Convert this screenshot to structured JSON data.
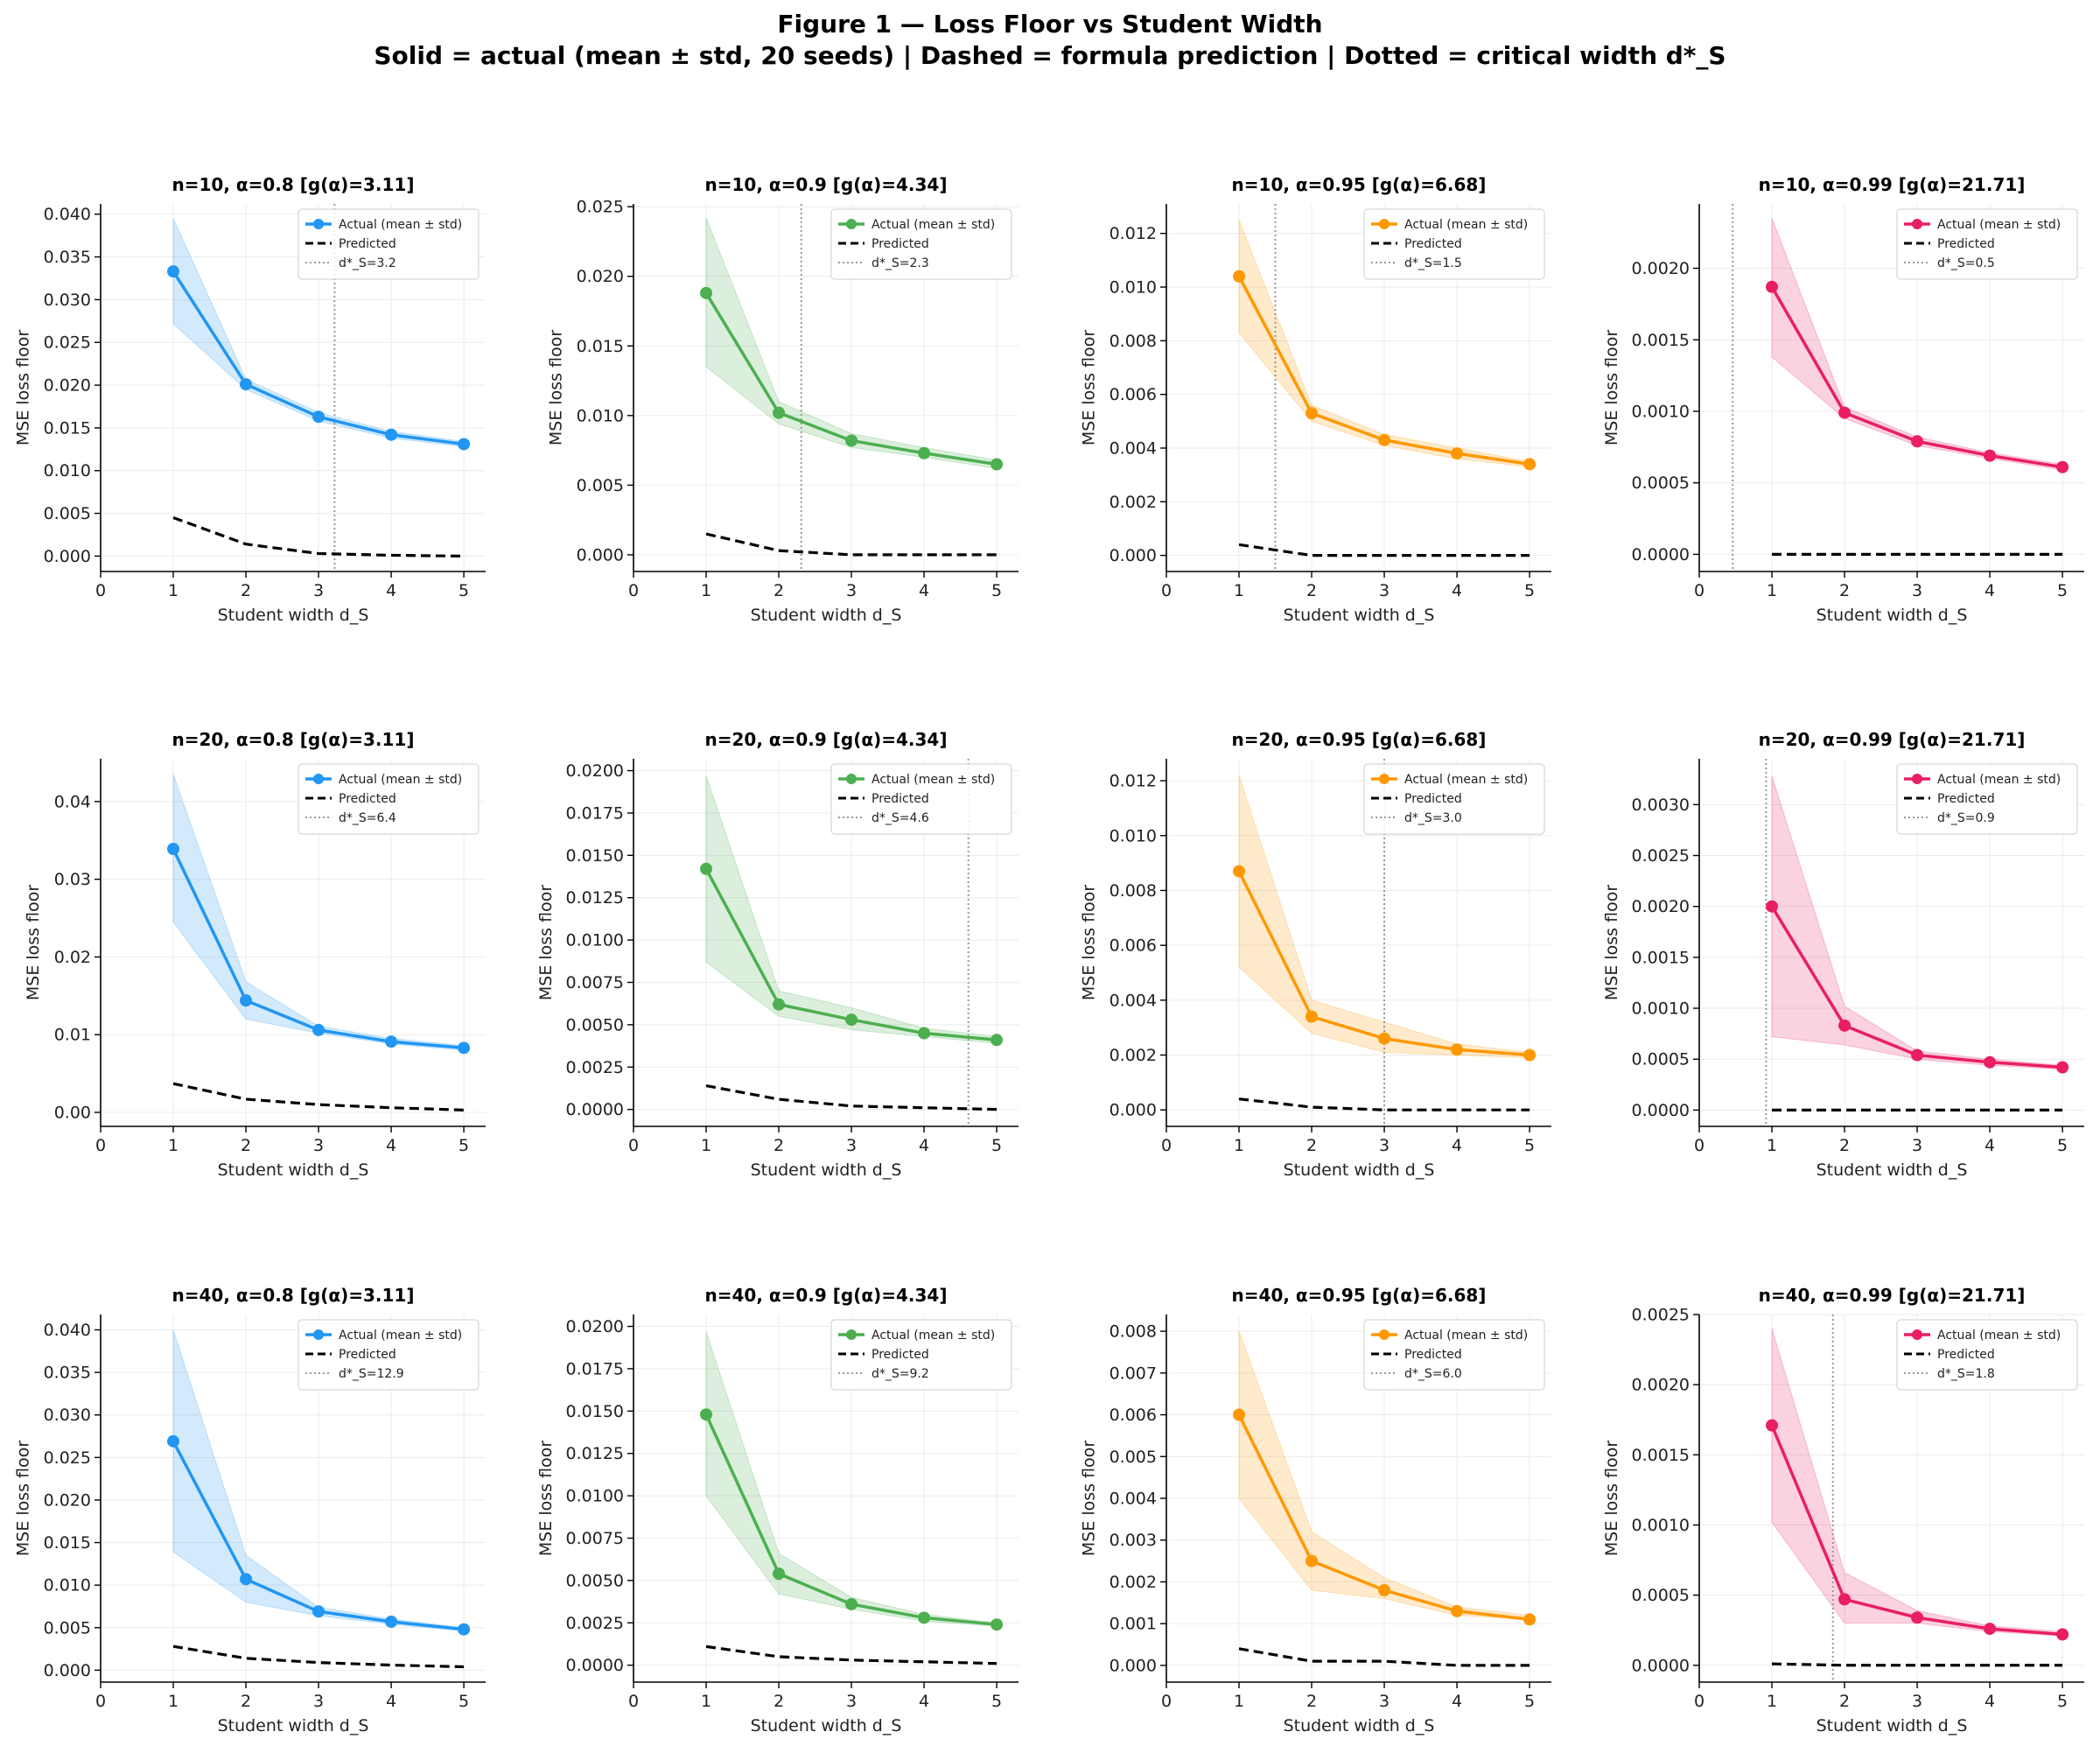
{
  "figure": {
    "title": "Figure 1 — Loss Floor vs Student Width",
    "subtitle": "Solid = actual (mean ± std, 20 seeds)  |  Dashed = formula prediction  |  Dotted = critical width d*_S"
  },
  "legend_labels": {
    "actual": "Actual (mean ± std)",
    "predicted": "Predicted"
  },
  "colors": {
    "alpha_0.8": "#2196F3",
    "alpha_0.9": "#4CAF50",
    "alpha_0.95": "#FF9800",
    "alpha_0.99": "#E91E63",
    "predicted": "#000000",
    "critical": "#999999"
  },
  "chart_data": [
    {
      "type": "line",
      "title": "n=10, α=0.8  [g(α)=3.11]",
      "xlabel": "Student width d_S",
      "ylabel": "MSE loss floor",
      "color": "#2196F3",
      "x": [
        1,
        2,
        3,
        4,
        5
      ],
      "xlim": [
        0,
        5.3
      ],
      "xticks": [
        "0",
        "1",
        "2",
        "3",
        "4",
        "5"
      ],
      "ylim": [
        -0.0018,
        0.0412
      ],
      "yticks": [
        "0.000",
        "0.005",
        "0.010",
        "0.015",
        "0.020",
        "0.025",
        "0.030",
        "0.035",
        "0.040"
      ],
      "series": [
        {
          "name": "Actual (mean ± std)",
          "values": [
            0.0333,
            0.0201,
            0.0163,
            0.0142,
            0.0131
          ],
          "lower": [
            0.0272,
            0.0195,
            0.0158,
            0.0138,
            0.0128
          ],
          "upper": [
            0.0395,
            0.0207,
            0.0168,
            0.0146,
            0.0134
          ]
        },
        {
          "name": "Predicted",
          "values": [
            0.0045,
            0.0014,
            0.0003,
            0.0001,
            0.0
          ]
        }
      ],
      "critical_width": 3.22,
      "critical_label": "d*_S=3.2",
      "legend": "upper-right",
      "grid": true
    },
    {
      "type": "line",
      "title": "n=10, α=0.9  [g(α)=4.34]",
      "xlabel": "Student width d_S",
      "ylabel": "MSE loss floor",
      "color": "#4CAF50",
      "x": [
        1,
        2,
        3,
        4,
        5
      ],
      "xlim": [
        0,
        5.3
      ],
      "xticks": [
        "0",
        "1",
        "2",
        "3",
        "4",
        "5"
      ],
      "ylim": [
        -0.0012,
        0.0252
      ],
      "yticks": [
        "0.000",
        "0.005",
        "0.010",
        "0.015",
        "0.020",
        "0.025"
      ],
      "series": [
        {
          "name": "Actual (mean ± std)",
          "values": [
            0.0188,
            0.0102,
            0.0082,
            0.0073,
            0.0065
          ],
          "lower": [
            0.0135,
            0.0094,
            0.0077,
            0.007,
            0.0062
          ],
          "upper": [
            0.0242,
            0.011,
            0.0087,
            0.0077,
            0.0068
          ]
        },
        {
          "name": "Predicted",
          "values": [
            0.0015,
            0.0003,
            0.0,
            0.0,
            0.0
          ]
        }
      ],
      "critical_width": 2.31,
      "critical_label": "d*_S=2.3",
      "legend": "upper-right",
      "grid": true
    },
    {
      "type": "line",
      "title": "n=10, α=0.95  [g(α)=6.68]",
      "xlabel": "Student width d_S",
      "ylabel": "MSE loss floor",
      "color": "#FF9800",
      "x": [
        1,
        2,
        3,
        4,
        5
      ],
      "xlim": [
        0,
        5.3
      ],
      "xticks": [
        "0",
        "1",
        "2",
        "3",
        "4",
        "5"
      ],
      "ylim": [
        -0.0006,
        0.0131
      ],
      "yticks": [
        "0.000",
        "0.002",
        "0.004",
        "0.006",
        "0.008",
        "0.010",
        "0.012"
      ],
      "series": [
        {
          "name": "Actual (mean ± std)",
          "values": [
            0.0104,
            0.0053,
            0.0043,
            0.0038,
            0.0034
          ],
          "lower": [
            0.0083,
            0.005,
            0.0041,
            0.0036,
            0.0033
          ],
          "upper": [
            0.0125,
            0.0056,
            0.0045,
            0.004,
            0.0035
          ]
        },
        {
          "name": "Predicted",
          "values": [
            0.0004,
            0.0,
            0.0,
            0.0,
            0.0
          ]
        }
      ],
      "critical_width": 1.5,
      "critical_label": "d*_S=1.5",
      "legend": "upper-right",
      "grid": true
    },
    {
      "type": "line",
      "title": "n=10, α=0.99  [g(α)=21.71]",
      "xlabel": "Student width d_S",
      "ylabel": "MSE loss floor",
      "color": "#E91E63",
      "x": [
        1,
        2,
        3,
        4,
        5
      ],
      "xlim": [
        0,
        5.3
      ],
      "xticks": [
        "0",
        "1",
        "2",
        "3",
        "4",
        "5"
      ],
      "ylim": [
        -0.00012,
        0.00245
      ],
      "yticks": [
        "0.0000",
        "0.0005",
        "0.0010",
        "0.0015",
        "0.0020"
      ],
      "series": [
        {
          "name": "Actual (mean ± std)",
          "values": [
            0.00187,
            0.00099,
            0.00079,
            0.00069,
            0.00061
          ],
          "lower": [
            0.00138,
            0.00095,
            0.00076,
            0.00067,
            0.00059
          ],
          "upper": [
            0.00235,
            0.00103,
            0.00082,
            0.00071,
            0.00063
          ]
        },
        {
          "name": "Predicted",
          "values": [
            0.0,
            0.0,
            0.0,
            0.0,
            0.0
          ]
        }
      ],
      "critical_width": 0.46,
      "critical_label": "d*_S=0.5",
      "legend": "upper-right",
      "grid": true
    },
    {
      "type": "line",
      "title": "n=20, α=0.8  [g(α)=3.11]",
      "xlabel": "Student width d_S",
      "ylabel": "MSE loss floor",
      "color": "#2196F3",
      "x": [
        1,
        2,
        3,
        4,
        5
      ],
      "xlim": [
        0,
        5.3
      ],
      "xticks": [
        "0",
        "1",
        "2",
        "3",
        "4",
        "5"
      ],
      "ylim": [
        -0.0018,
        0.0455
      ],
      "yticks": [
        "0.00",
        "0.01",
        "0.02",
        "0.03",
        "0.04"
      ],
      "series": [
        {
          "name": "Actual (mean ± std)",
          "values": [
            0.0339,
            0.0144,
            0.0106,
            0.0091,
            0.0083
          ],
          "lower": [
            0.0245,
            0.012,
            0.0102,
            0.0088,
            0.008
          ],
          "upper": [
            0.0435,
            0.0168,
            0.0111,
            0.0095,
            0.0086
          ]
        },
        {
          "name": "Predicted",
          "values": [
            0.0037,
            0.0017,
            0.001,
            0.0006,
            0.0003
          ]
        }
      ],
      "critical_width": 6.4,
      "critical_label": "d*_S=6.4",
      "legend": "upper-right",
      "grid": true
    },
    {
      "type": "line",
      "title": "n=20, α=0.9  [g(α)=4.34]",
      "xlabel": "Student width d_S",
      "ylabel": "MSE loss floor",
      "color": "#4CAF50",
      "x": [
        1,
        2,
        3,
        4,
        5
      ],
      "xlim": [
        0,
        5.3
      ],
      "xticks": [
        "0",
        "1",
        "2",
        "3",
        "4",
        "5"
      ],
      "ylim": [
        -0.001,
        0.0207
      ],
      "yticks": [
        "0.0000",
        "0.0025",
        "0.0050",
        "0.0075",
        "0.0100",
        "0.0125",
        "0.0150",
        "0.0175",
        "0.0200"
      ],
      "series": [
        {
          "name": "Actual (mean ± std)",
          "values": [
            0.0142,
            0.0062,
            0.0053,
            0.0045,
            0.0041
          ],
          "lower": [
            0.0087,
            0.0055,
            0.0047,
            0.0043,
            0.0039
          ],
          "upper": [
            0.0197,
            0.007,
            0.006,
            0.0048,
            0.0043
          ]
        },
        {
          "name": "Predicted",
          "values": [
            0.0014,
            0.0006,
            0.0002,
            0.0001,
            0.0
          ]
        }
      ],
      "critical_width": 4.61,
      "critical_label": "d*_S=4.6",
      "legend": "upper-right",
      "grid": true
    },
    {
      "type": "line",
      "title": "n=20, α=0.95  [g(α)=6.68]",
      "xlabel": "Student width d_S",
      "ylabel": "MSE loss floor",
      "color": "#FF9800",
      "x": [
        1,
        2,
        3,
        4,
        5
      ],
      "xlim": [
        0,
        5.3
      ],
      "xticks": [
        "0",
        "1",
        "2",
        "3",
        "4",
        "5"
      ],
      "ylim": [
        -0.0006,
        0.0128
      ],
      "yticks": [
        "0.000",
        "0.002",
        "0.004",
        "0.006",
        "0.008",
        "0.010",
        "0.012"
      ],
      "series": [
        {
          "name": "Actual (mean ± std)",
          "values": [
            0.0087,
            0.0034,
            0.0026,
            0.0022,
            0.002
          ],
          "lower": [
            0.0052,
            0.0028,
            0.0021,
            0.002,
            0.0019
          ],
          "upper": [
            0.0122,
            0.004,
            0.0032,
            0.0024,
            0.0021
          ]
        },
        {
          "name": "Predicted",
          "values": [
            0.0004,
            0.0001,
            0.0,
            0.0,
            0.0
          ]
        }
      ],
      "critical_width": 3.0,
      "critical_label": "d*_S=3.0",
      "legend": "upper-right",
      "grid": true
    },
    {
      "type": "line",
      "title": "n=20, α=0.99  [g(α)=21.71]",
      "xlabel": "Student width d_S",
      "ylabel": "MSE loss floor",
      "color": "#E91E63",
      "x": [
        1,
        2,
        3,
        4,
        5
      ],
      "xlim": [
        0,
        5.3
      ],
      "xticks": [
        "0",
        "1",
        "2",
        "3",
        "4",
        "5"
      ],
      "ylim": [
        -0.00016,
        0.00345
      ],
      "yticks": [
        "0.0000",
        "0.0005",
        "0.0010",
        "0.0015",
        "0.0020",
        "0.0025",
        "0.0030"
      ],
      "series": [
        {
          "name": "Actual (mean ± std)",
          "values": [
            0.002,
            0.00083,
            0.00054,
            0.00047,
            0.00042
          ],
          "lower": [
            0.00072,
            0.00064,
            0.0005,
            0.00044,
            0.0004
          ],
          "upper": [
            0.00328,
            0.00102,
            0.00058,
            0.0005,
            0.00044
          ]
        },
        {
          "name": "Predicted",
          "values": [
            0.0,
            0.0,
            0.0,
            0.0,
            0.0
          ]
        }
      ],
      "critical_width": 0.92,
      "critical_label": "d*_S=0.9",
      "legend": "upper-right",
      "grid": true
    },
    {
      "type": "line",
      "title": "n=40, α=0.8  [g(α)=3.11]",
      "xlabel": "Student width d_S",
      "ylabel": "MSE loss floor",
      "color": "#2196F3",
      "x": [
        1,
        2,
        3,
        4,
        5
      ],
      "xlim": [
        0,
        5.3
      ],
      "xticks": [
        "0",
        "1",
        "2",
        "3",
        "4",
        "5"
      ],
      "ylim": [
        -0.0014,
        0.0418
      ],
      "yticks": [
        "0.000",
        "0.005",
        "0.010",
        "0.015",
        "0.020",
        "0.025",
        "0.030",
        "0.035",
        "0.040"
      ],
      "series": [
        {
          "name": "Actual (mean ± std)",
          "values": [
            0.0269,
            0.0107,
            0.0069,
            0.0057,
            0.0048
          ],
          "lower": [
            0.0139,
            0.008,
            0.0064,
            0.0054,
            0.0046
          ],
          "upper": [
            0.04,
            0.0135,
            0.0074,
            0.006,
            0.005
          ]
        },
        {
          "name": "Predicted",
          "values": [
            0.0028,
            0.0014,
            0.0009,
            0.0006,
            0.0004
          ]
        }
      ],
      "critical_width": 12.9,
      "critical_label": "d*_S=12.9",
      "legend": "upper-right",
      "grid": true
    },
    {
      "type": "line",
      "title": "n=40, α=0.9  [g(α)=4.34]",
      "xlabel": "Student width d_S",
      "ylabel": "MSE loss floor",
      "color": "#4CAF50",
      "x": [
        1,
        2,
        3,
        4,
        5
      ],
      "xlim": [
        0,
        5.3
      ],
      "xticks": [
        "0",
        "1",
        "2",
        "3",
        "4",
        "5"
      ],
      "ylim": [
        -0.001,
        0.0207
      ],
      "yticks": [
        "0.0000",
        "0.0025",
        "0.0050",
        "0.0075",
        "0.0100",
        "0.0125",
        "0.0150",
        "0.0175",
        "0.0200"
      ],
      "series": [
        {
          "name": "Actual (mean ± std)",
          "values": [
            0.0148,
            0.0054,
            0.0036,
            0.0028,
            0.0024
          ],
          "lower": [
            0.01,
            0.0042,
            0.0033,
            0.0026,
            0.0023
          ],
          "upper": [
            0.0197,
            0.0066,
            0.004,
            0.003,
            0.0025
          ]
        },
        {
          "name": "Predicted",
          "values": [
            0.0011,
            0.0005,
            0.0003,
            0.0002,
            0.0001
          ]
        }
      ],
      "critical_width": 9.2,
      "critical_label": "d*_S=9.2",
      "legend": "upper-right",
      "grid": true
    },
    {
      "type": "line",
      "title": "n=40, α=0.95  [g(α)=6.68]",
      "xlabel": "Student width d_S",
      "ylabel": "MSE loss floor",
      "color": "#FF9800",
      "x": [
        1,
        2,
        3,
        4,
        5
      ],
      "xlim": [
        0,
        5.3
      ],
      "xticks": [
        "0",
        "1",
        "2",
        "3",
        "4",
        "5"
      ],
      "ylim": [
        -0.0004,
        0.0084
      ],
      "yticks": [
        "0.000",
        "0.001",
        "0.002",
        "0.003",
        "0.004",
        "0.005",
        "0.006",
        "0.007",
        "0.008"
      ],
      "series": [
        {
          "name": "Actual (mean ± std)",
          "values": [
            0.006,
            0.0025,
            0.0018,
            0.0013,
            0.0011
          ],
          "lower": [
            0.004,
            0.0018,
            0.0016,
            0.0012,
            0.0011
          ],
          "upper": [
            0.008,
            0.0032,
            0.0021,
            0.0014,
            0.0012
          ]
        },
        {
          "name": "Predicted",
          "values": [
            0.0004,
            0.0001,
            0.0001,
            0.0,
            0.0
          ]
        }
      ],
      "critical_width": 6.0,
      "critical_label": "d*_S=6.0",
      "legend": "upper-right",
      "grid": true
    },
    {
      "type": "line",
      "title": "n=40, α=0.99  [g(α)=21.71]",
      "xlabel": "Student width d_S",
      "ylabel": "MSE loss floor",
      "color": "#E91E63",
      "x": [
        1,
        2,
        3,
        4,
        5
      ],
      "xlim": [
        0,
        5.3
      ],
      "xticks": [
        "0",
        "1",
        "2",
        "3",
        "4",
        "5"
      ],
      "ylim": [
        -0.00012,
        0.0025
      ],
      "yticks": [
        "0.0000",
        "0.0005",
        "0.0010",
        "0.0015",
        "0.0020",
        "0.0025"
      ],
      "series": [
        {
          "name": "Actual (mean ± std)",
          "values": [
            0.00171,
            0.00047,
            0.00034,
            0.00026,
            0.00022
          ],
          "lower": [
            0.00102,
            0.0003,
            0.0003,
            0.00024,
            0.00021
          ],
          "upper": [
            0.0024,
            0.00066,
            0.00039,
            0.00028,
            0.00024
          ]
        },
        {
          "name": "Predicted",
          "values": [
            1e-05,
            0.0,
            0.0,
            0.0,
            0.0
          ]
        }
      ],
      "critical_width": 1.84,
      "critical_label": "d*_S=1.8",
      "legend": "upper-right",
      "grid": true
    }
  ]
}
